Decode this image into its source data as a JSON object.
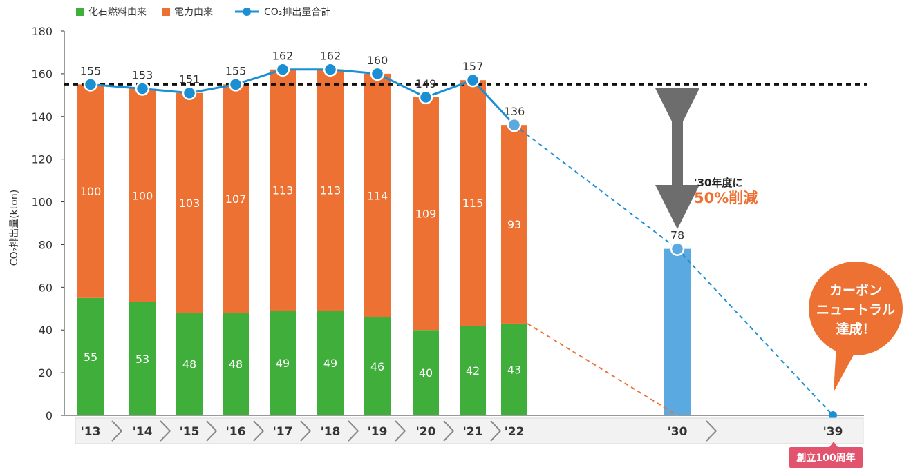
{
  "chart_data": {
    "type": "bar",
    "title": "",
    "ylabel": "CO₂排出量(kton)",
    "xlabel": "",
    "ylim": [
      0,
      180
    ],
    "yticks": [
      0,
      20,
      40,
      60,
      80,
      100,
      120,
      140,
      160,
      180
    ],
    "categories": [
      "'13",
      "'14",
      "'15",
      "'16",
      "'17",
      "'18",
      "'19",
      "'20",
      "'21",
      "'22",
      "'30",
      "'39"
    ],
    "series": [
      {
        "name": "化石燃料由来",
        "color": "#3fae3a",
        "values": [
          55,
          53,
          48,
          48,
          49,
          49,
          46,
          40,
          42,
          43,
          null,
          null
        ]
      },
      {
        "name": "電力由来",
        "color": "#ed7132",
        "values": [
          100,
          100,
          103,
          107,
          113,
          113,
          114,
          109,
          115,
          93,
          null,
          null
        ]
      },
      {
        "name": "CO₂排出量合計",
        "color": "#1b8fd4",
        "line": true,
        "values": [
          155,
          153,
          151,
          155,
          162,
          162,
          160,
          149,
          157,
          136,
          78,
          0
        ]
      }
    ],
    "target_bar": {
      "category": "'30",
      "value": 78,
      "color": "#5aa9e0"
    },
    "reference_line": 155,
    "legend_position": "top-left",
    "annotations": {
      "reduction_small": "'30年度に",
      "reduction_big": "50%削減",
      "bubble_lines": [
        "カーボン",
        "ニュートラル",
        "達成！"
      ],
      "tag": "創立100周年"
    }
  }
}
